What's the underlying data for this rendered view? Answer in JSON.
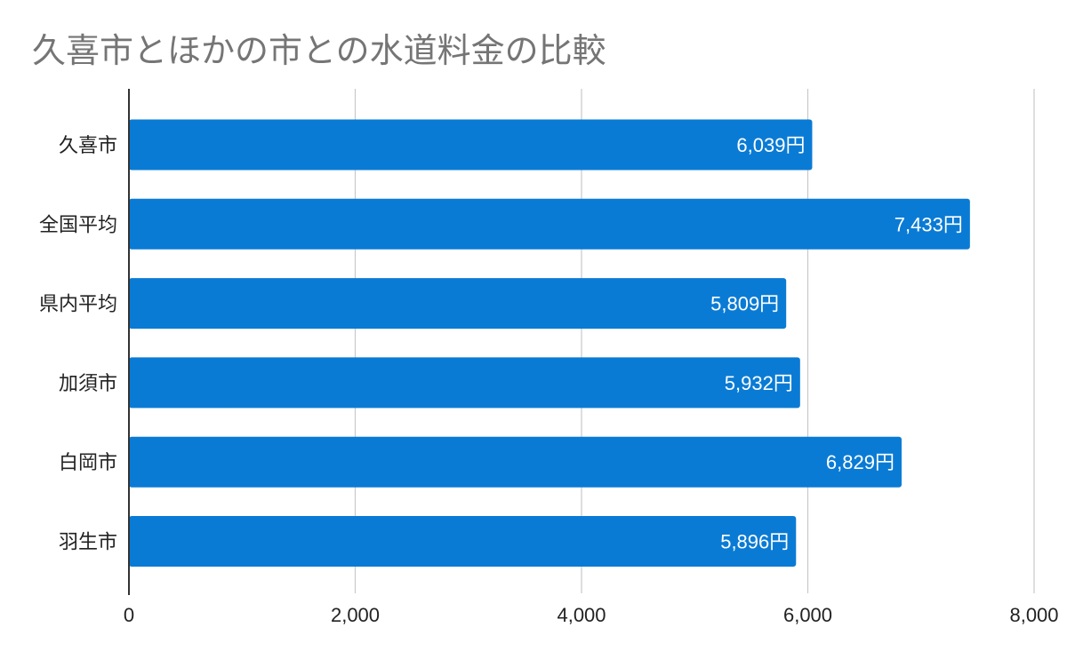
{
  "chart_data": {
    "type": "bar",
    "orientation": "horizontal",
    "title": "久喜市とほかの市との水道料金の比較",
    "categories": [
      "久喜市",
      "全国平均",
      "県内平均",
      "加須市",
      "白岡市",
      "羽生市"
    ],
    "values": [
      6039,
      7433,
      5809,
      5932,
      6829,
      5896
    ],
    "data_labels": [
      "6,039円",
      "7,433円",
      "5,809円",
      "5,932円",
      "6,829円",
      "5,896円"
    ],
    "xlim": [
      0,
      8000
    ],
    "x_ticks": [
      0,
      2000,
      4000,
      6000,
      8000
    ],
    "x_tick_labels": [
      "0",
      "2,000",
      "4,000",
      "6,000",
      "8,000"
    ],
    "grid": true,
    "legend": "none",
    "bar_color": "#0a7bd5"
  }
}
